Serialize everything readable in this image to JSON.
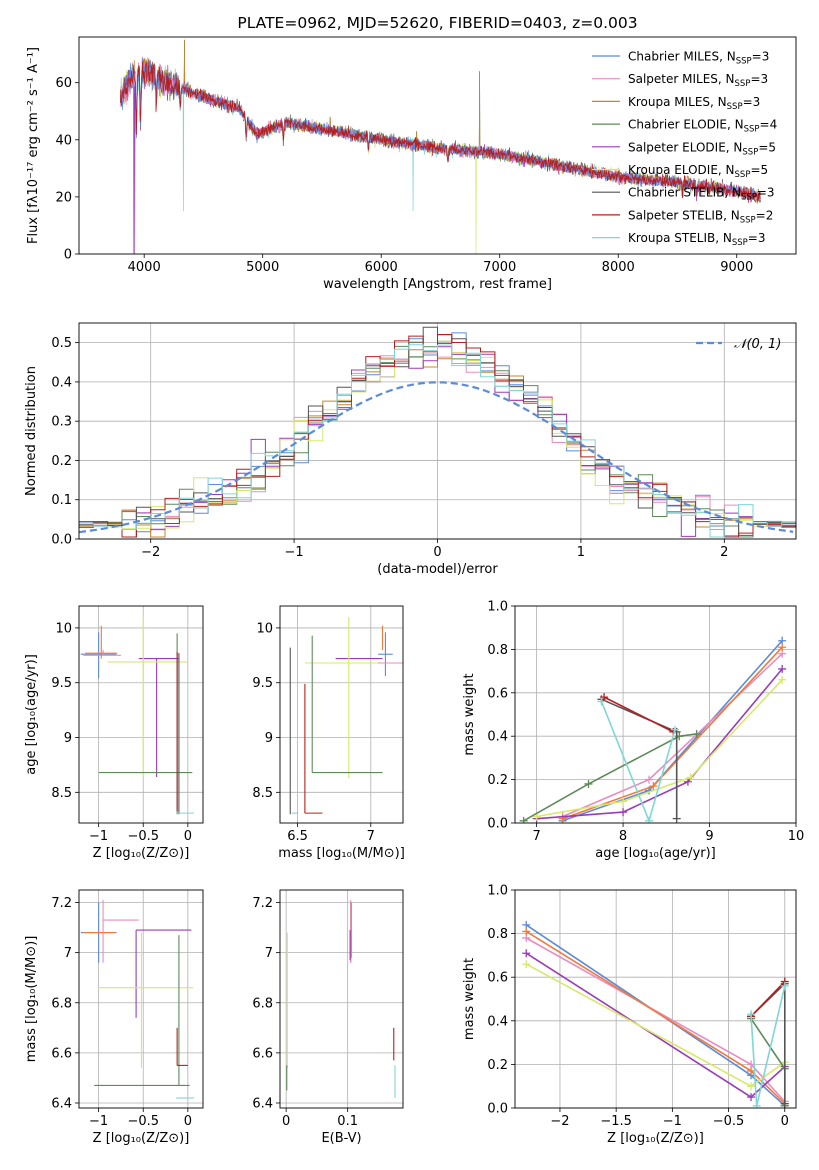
{
  "colors": [
    "#5b8bdb",
    "#e98bc2",
    "#c9852a",
    "#5e8a5a",
    "#9b3bb8",
    "#d7e86a",
    "#555555",
    "#b5201e",
    "#7fd6d6",
    "#f07a3a"
  ],
  "chart_data": [
    {
      "id": "spectrum",
      "type": "line",
      "title": "PLATE=0962, MJD=52620, FIBERID=0403, z=0.003",
      "xlabel": "wavelength [Angstrom, rest frame]",
      "ylabel": "Flux [fλ10⁻¹⁷ erg cm⁻² s⁻¹ A⁻¹]",
      "xlim": [
        3450,
        9500
      ],
      "ylim": [
        0,
        76
      ],
      "xticks": [
        4000,
        5000,
        6000,
        7000,
        8000,
        9000
      ],
      "yticks": [
        0,
        20,
        40,
        60
      ],
      "grid": false,
      "legend_position": "top-right",
      "continuum": {
        "x": [
          3800,
          3900,
          4000,
          4200,
          4500,
          4800,
          4950,
          5200,
          5600,
          6000,
          6500,
          7000,
          7500,
          8000,
          8500,
          9000,
          9200
        ],
        "y": [
          55,
          62,
          64,
          60,
          55,
          51,
          42,
          46,
          43,
          40,
          37,
          35,
          31,
          27,
          25,
          22,
          20
        ]
      },
      "absorption_lines": [
        {
          "x": 3934,
          "depth": 20
        },
        {
          "x": 3969,
          "depth": 18
        },
        {
          "x": 4102,
          "depth": 8
        },
        {
          "x": 4305,
          "depth": 7
        },
        {
          "x": 4861,
          "depth": 6
        },
        {
          "x": 5175,
          "depth": 5
        },
        {
          "x": 5893,
          "depth": 4
        },
        {
          "x": 6563,
          "depth": 4
        },
        {
          "x": 8542,
          "depth": 4
        },
        {
          "x": 8662,
          "depth": 3
        }
      ],
      "spikes": [
        {
          "x": 4340,
          "to": 75
        },
        {
          "x": 6830,
          "to": 64
        },
        {
          "x": 6300,
          "to": 43
        },
        {
          "x": 5570,
          "to": 48
        }
      ],
      "drops": [
        {
          "x": 3910,
          "series": 2
        },
        {
          "x": 3920,
          "series": 4
        },
        {
          "x": 4310,
          "series": 9
        },
        {
          "x": 6270,
          "series": 8
        },
        {
          "x": 6800,
          "series": 5
        },
        {
          "x": 7420,
          "series": 9
        },
        {
          "x": 4330,
          "series": 8
        }
      ],
      "series": [
        {
          "name": "Chabrier MILES, N",
          "sub": "SSP",
          "suffix": "=3"
        },
        {
          "name": "Salpeter MILES, N",
          "sub": "SSP",
          "suffix": "=3"
        },
        {
          "name": "Kroupa MILES, N",
          "sub": "SSP",
          "suffix": "=3"
        },
        {
          "name": "Chabrier ELODIE, N",
          "sub": "SSP",
          "suffix": "=4"
        },
        {
          "name": "Salpeter ELODIE, N",
          "sub": "SSP",
          "suffix": "=5"
        },
        {
          "name": "Kroupa ELODIE, N",
          "sub": "SSP",
          "suffix": "=5"
        },
        {
          "name": "Chabrier STELIB, N",
          "sub": "SSP",
          "suffix": "=3"
        },
        {
          "name": "Salpeter STELIB, N",
          "sub": "SSP",
          "suffix": "=2"
        },
        {
          "name": "Kroupa STELIB, N",
          "sub": "SSP",
          "suffix": "=3"
        }
      ]
    },
    {
      "id": "residuals",
      "type": "histogram",
      "xlabel": "(data-model)/error",
      "ylabel": "Normed distribution",
      "xlim": [
        -2.5,
        2.5
      ],
      "ylim": [
        0,
        0.55
      ],
      "xticks": [
        -2,
        -1,
        0,
        1,
        2
      ],
      "yticks": [
        0.0,
        0.1,
        0.2,
        0.3,
        0.4,
        0.5
      ],
      "grid": true,
      "bin_width": 0.1,
      "reference_curve": {
        "name": "𝒩(0, 1)",
        "style": "dashed",
        "color": "#5b8bdb"
      },
      "legend_position": "top-right"
    },
    {
      "id": "age-vs-Z",
      "type": "errorbar",
      "xlabel": "Z [log₁₀(Z/Z⊙)]",
      "ylabel": "age  [log₁₀(age/yr)]",
      "xlim": [
        -1.22,
        0.17
      ],
      "ylim": [
        8.22,
        10.2
      ],
      "xticks": [
        -1.0,
        -0.5,
        0.0
      ],
      "yticks": [
        8.5,
        9.0,
        9.5,
        10.0
      ],
      "grid": true,
      "points": [
        {
          "x": -1.0,
          "xerr": [
            0.2,
            0.2
          ],
          "y": 9.76,
          "yerr": [
            0.22,
            0.2
          ],
          "c": 0
        },
        {
          "x": -0.95,
          "xerr": [
            0.22,
            0.2
          ],
          "y": 9.75,
          "yerr": [
            0.0,
            0.05
          ],
          "c": 1
        },
        {
          "x": -0.97,
          "xerr": [
            0.18,
            0.18
          ],
          "y": 9.77,
          "yerr": [
            0.05,
            0.25
          ],
          "c": 9
        },
        {
          "x": -0.35,
          "xerr": [
            0.2,
            0.25
          ],
          "y": 9.72,
          "yerr": [
            1.08,
            0.0
          ],
          "c": 4
        },
        {
          "x": -0.5,
          "xerr": [
            0.4,
            0.5
          ],
          "y": 9.69,
          "yerr": [
            1.05,
            0.43
          ],
          "c": 5
        },
        {
          "x": -0.55,
          "xerr": [
            0.45,
            0.6
          ],
          "y": 8.68,
          "yerr": [
            0.0,
            0.0
          ],
          "c": 3
        },
        {
          "x": -0.12,
          "xerr": [
            0.0,
            0.0
          ],
          "y": 9.5,
          "yerr": [
            1.2,
            0.45
          ],
          "c": 3
        },
        {
          "x": -0.1,
          "xerr": [
            0.0,
            0.0
          ],
          "y": 9.77,
          "yerr": [
            1.47,
            0.0
          ],
          "c": 6
        },
        {
          "x": -0.03,
          "xerr": [
            0.1,
            0.1
          ],
          "y": 8.31,
          "yerr": [
            0.0,
            0.0
          ],
          "c": 8
        },
        {
          "x": -0.12,
          "xerr": [
            0.0,
            0.0
          ],
          "y": 9.68,
          "yerr": [
            1.35,
            0.1
          ],
          "c": 7
        }
      ]
    },
    {
      "id": "age-vs-mass",
      "type": "errorbar",
      "xlabel": "mass [log₁₀(M/M⊙)]",
      "ylabel": "",
      "xlim": [
        6.38,
        7.22
      ],
      "ylim": [
        8.22,
        10.2
      ],
      "xticks": [
        6.5,
        7.0
      ],
      "yticks": [
        8.5,
        9.0,
        9.5,
        10.0
      ],
      "grid": true,
      "points": [
        {
          "x": 7.1,
          "xerr": [
            0.05,
            0.05
          ],
          "y": 9.76,
          "yerr": [
            0.2,
            0.2
          ],
          "c": 0
        },
        {
          "x": 7.12,
          "xerr": [
            0.1,
            0.1
          ],
          "y": 9.68,
          "yerr": [
            0.0,
            0.0
          ],
          "c": 1
        },
        {
          "x": 7.08,
          "xerr": [
            0.0,
            0.0
          ],
          "y": 9.8,
          "yerr": [
            0.0,
            0.22
          ],
          "c": 9
        },
        {
          "x": 6.98,
          "xerr": [
            0.22,
            0.1
          ],
          "y": 9.72,
          "yerr": [
            0.0,
            0.0
          ],
          "c": 4
        },
        {
          "x": 6.85,
          "xerr": [
            0.3,
            0.2
          ],
          "y": 9.68,
          "yerr": [
            1.05,
            0.42
          ],
          "c": 5
        },
        {
          "x": 6.6,
          "xerr": [
            0.0,
            0.48
          ],
          "y": 8.68,
          "yerr": [
            0.0,
            1.25
          ],
          "c": 3
        },
        {
          "x": 6.45,
          "xerr": [
            0.0,
            0.0
          ],
          "y": 9.1,
          "yerr": [
            0.8,
            0.72
          ],
          "c": 6
        },
        {
          "x": 6.55,
          "xerr": [
            0.0,
            0.12
          ],
          "y": 8.31,
          "yerr": [
            0.0,
            1.18
          ],
          "c": 7
        },
        {
          "x": 6.46,
          "xerr": [
            0.0,
            0.04
          ],
          "y": 8.31,
          "yerr": [
            0.0,
            0.0
          ],
          "c": 8
        }
      ]
    },
    {
      "id": "weight-vs-age",
      "type": "line",
      "xlabel": "age  [log₁₀(age/yr)]",
      "ylabel": "mass weight",
      "xlim": [
        6.75,
        10.0
      ],
      "ylim": [
        0,
        1.0
      ],
      "xticks": [
        7,
        8,
        9,
        10
      ],
      "yticks": [
        0.0,
        0.2,
        0.4,
        0.6,
        0.8,
        1.0
      ],
      "grid": true,
      "series": [
        {
          "c": 0,
          "x": [
            7.3,
            8.3,
            9.84
          ],
          "y": [
            0.01,
            0.15,
            0.84
          ]
        },
        {
          "c": 1,
          "x": [
            7.3,
            8.3,
            9.84
          ],
          "y": [
            0.03,
            0.2,
            0.78
          ]
        },
        {
          "c": 9,
          "x": [
            7.3,
            8.35,
            9.84
          ],
          "y": [
            0.02,
            0.17,
            0.81
          ]
        },
        {
          "c": 4,
          "x": [
            7.0,
            8.0,
            8.75,
            9.84
          ],
          "y": [
            0.02,
            0.05,
            0.19,
            0.71
          ]
        },
        {
          "c": 5,
          "x": [
            7.0,
            8.0,
            8.78,
            9.84
          ],
          "y": [
            0.03,
            0.1,
            0.21,
            0.66
          ]
        },
        {
          "c": 3,
          "x": [
            6.85,
            7.6,
            8.65,
            8.85
          ],
          "y": [
            0.01,
            0.18,
            0.4,
            0.41
          ]
        },
        {
          "c": 6,
          "x": [
            7.75,
            8.62,
            8.62
          ],
          "y": [
            0.57,
            0.42,
            0.02
          ]
        },
        {
          "c": 7,
          "x": [
            7.78,
            8.58
          ],
          "y": [
            0.58,
            0.42
          ]
        },
        {
          "c": 8,
          "x": [
            7.75,
            8.3,
            8.6
          ],
          "y": [
            0.56,
            0.01,
            0.43
          ]
        }
      ]
    },
    {
      "id": "mass-vs-Z",
      "type": "errorbar",
      "xlabel": "Z [log₁₀(Z/Z⊙)]",
      "ylabel": "mass [log₁₀(M/M⊙)]",
      "xlim": [
        -1.22,
        0.17
      ],
      "ylim": [
        6.38,
        7.25
      ],
      "xticks": [
        -1.0,
        -0.5,
        0.0
      ],
      "yticks": [
        6.4,
        6.6,
        6.8,
        7.0,
        7.2
      ],
      "grid": true,
      "points": [
        {
          "x": -1.0,
          "xerr": [
            0.2,
            0.2
          ],
          "y": 7.08,
          "yerr": [
            0.12,
            0.12
          ],
          "c": 0
        },
        {
          "x": -0.95,
          "xerr": [
            0.0,
            0.4
          ],
          "y": 7.13,
          "yerr": [
            0.17,
            0.08
          ],
          "c": 1
        },
        {
          "x": -0.97,
          "xerr": [
            0.2,
            0.15
          ],
          "y": 7.08,
          "yerr": [
            0.0,
            0.0
          ],
          "c": 9
        },
        {
          "x": -0.58,
          "xerr": [
            0.0,
            0.62
          ],
          "y": 7.09,
          "yerr": [
            0.35,
            0.0
          ],
          "c": 4
        },
        {
          "x": -0.52,
          "xerr": [
            0.48,
            0.58
          ],
          "y": 6.86,
          "yerr": [
            0.32,
            0.22
          ],
          "c": 5
        },
        {
          "x": -0.1,
          "xerr": [
            0.95,
            0.12
          ],
          "y": 6.47,
          "yerr": [
            0.0,
            0.6
          ],
          "c": 3
        },
        {
          "x": -0.12,
          "xerr": [
            0.0,
            0.0
          ],
          "y": 6.6,
          "yerr": [
            0.05,
            0.1
          ],
          "c": 7
        },
        {
          "x": -0.12,
          "xerr": [
            0.0,
            0.12
          ],
          "y": 6.55,
          "yerr": [
            0.0,
            0.0
          ],
          "c": 7
        },
        {
          "x": -0.03,
          "xerr": [
            0.1,
            0.1
          ],
          "y": 6.42,
          "yerr": [
            0.0,
            0.0
          ],
          "c": 8
        }
      ]
    },
    {
      "id": "mass-vs-EBV",
      "type": "errorbar",
      "xlabel": "E(B-V)",
      "ylabel": "",
      "xlim": [
        -0.01,
        0.19
      ],
      "ylim": [
        6.38,
        7.25
      ],
      "xticks": [
        0.0,
        0.1
      ],
      "yticks": [
        6.4,
        6.6,
        6.8,
        7.0,
        7.2
      ],
      "grid": true,
      "points": [
        {
          "x": 0.105,
          "xerr": [
            0,
            0
          ],
          "y": 7.08,
          "yerr": [
            0.12,
            0.12
          ],
          "c": 0
        },
        {
          "x": 0.105,
          "xerr": [
            0,
            0
          ],
          "y": 7.13,
          "yerr": [
            0.17,
            0.08
          ],
          "c": 1
        },
        {
          "x": 0.106,
          "xerr": [
            0,
            0
          ],
          "y": 7.08,
          "yerr": [
            0.1,
            0.12
          ],
          "c": 9
        },
        {
          "x": 0.104,
          "xerr": [
            0,
            0
          ],
          "y": 7.09,
          "yerr": [
            0.12,
            0.0
          ],
          "c": 4
        },
        {
          "x": 0.002,
          "xerr": [
            0,
            0
          ],
          "y": 6.86,
          "yerr": [
            0.32,
            0.22
          ],
          "c": 5
        },
        {
          "x": 0.001,
          "xerr": [
            0,
            0
          ],
          "y": 6.5,
          "yerr": [
            0.05,
            0.05
          ],
          "c": 3
        },
        {
          "x": 0.175,
          "xerr": [
            0,
            0
          ],
          "y": 6.6,
          "yerr": [
            0.03,
            0.1
          ],
          "c": 7
        },
        {
          "x": 0.177,
          "xerr": [
            0,
            0
          ],
          "y": 6.48,
          "yerr": [
            0.06,
            0.07
          ],
          "c": 8
        }
      ]
    },
    {
      "id": "weight-vs-Z",
      "type": "line",
      "xlabel": "Z [log₁₀(Z/Z⊙)]",
      "ylabel": "mass weight",
      "xlim": [
        -2.4,
        0.1
      ],
      "ylim": [
        0,
        1.0
      ],
      "xticks": [
        -2.0,
        -1.5,
        -1.0,
        -0.5,
        0.0
      ],
      "yticks": [
        0.0,
        0.2,
        0.4,
        0.6,
        0.8,
        1.0
      ],
      "grid": true,
      "series": [
        {
          "c": 0,
          "x": [
            -2.3,
            -0.3,
            0.0
          ],
          "y": [
            0.84,
            0.15,
            0.01
          ]
        },
        {
          "c": 1,
          "x": [
            -2.3,
            -0.3,
            0.0
          ],
          "y": [
            0.78,
            0.2,
            0.03
          ]
        },
        {
          "c": 9,
          "x": [
            -2.3,
            -0.3,
            0.0
          ],
          "y": [
            0.81,
            0.17,
            0.02
          ]
        },
        {
          "c": 4,
          "x": [
            -2.3,
            -0.3,
            0.0
          ],
          "y": [
            0.71,
            0.05,
            0.19
          ]
        },
        {
          "c": 5,
          "x": [
            -2.3,
            -0.3,
            0.0
          ],
          "y": [
            0.66,
            0.1,
            0.21
          ]
        },
        {
          "c": 3,
          "x": [
            -0.3,
            0.0,
            0.0
          ],
          "y": [
            0.41,
            0.18,
            0.01
          ]
        },
        {
          "c": 6,
          "x": [
            -0.3,
            0.0,
            0.0
          ],
          "y": [
            0.42,
            0.57,
            0.02
          ]
        },
        {
          "c": 7,
          "x": [
            -0.3,
            0.0
          ],
          "y": [
            0.42,
            0.58
          ]
        },
        {
          "c": 8,
          "x": [
            -0.3,
            -0.25,
            0.0
          ],
          "y": [
            0.43,
            0.01,
            0.56
          ]
        }
      ]
    }
  ]
}
